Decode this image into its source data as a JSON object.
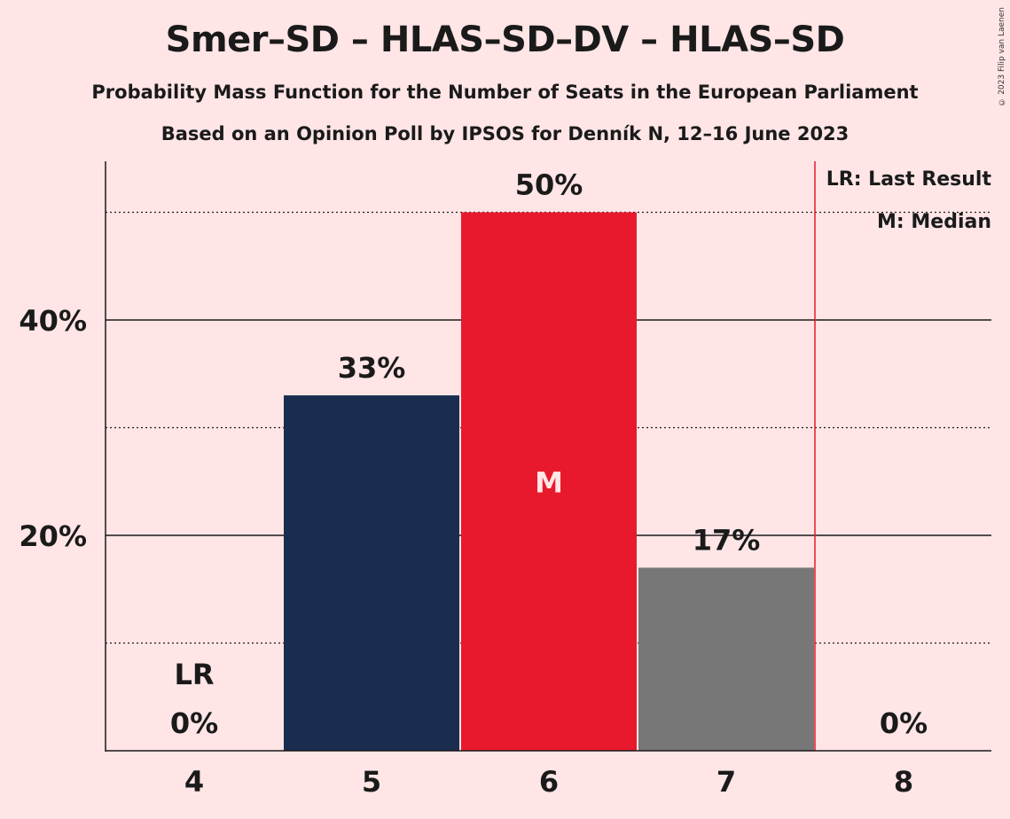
{
  "title": "Smer–SD – HLAS–SD–DV – HLAS–SD",
  "subtitle1": "Probability Mass Function for the Number of Seats in the European Parliament",
  "subtitle2": "Based on an Opinion Poll by IPSOS for Denník N, 12–16 June 2023",
  "copyright": "© 2023 Filip van Laenen",
  "legend": {
    "lr": "LR: Last Result",
    "m": "M: Median"
  },
  "colors": {
    "background": "#FFE5E6",
    "bar_5": "#1B2D4F",
    "bar_6": "#E8192C",
    "bar_7": "#777777",
    "last_result_line": "#E8192C"
  },
  "chart_data": {
    "type": "bar",
    "categories": [
      "4",
      "5",
      "6",
      "7",
      "8"
    ],
    "values": [
      0,
      33,
      50,
      17,
      0
    ],
    "value_labels": [
      "0%",
      "33%",
      "50%",
      "17%",
      "0%"
    ],
    "ylim": [
      0,
      55
    ],
    "yticks": [
      20,
      40
    ],
    "ytick_labels": [
      "20%",
      "40%"
    ],
    "minor_gridlines": [
      10,
      30,
      50
    ],
    "median_category": "6",
    "median_marker": "M",
    "last_result_category": "4",
    "last_result_marker": "LR",
    "last_result_line_after_category": "7"
  }
}
